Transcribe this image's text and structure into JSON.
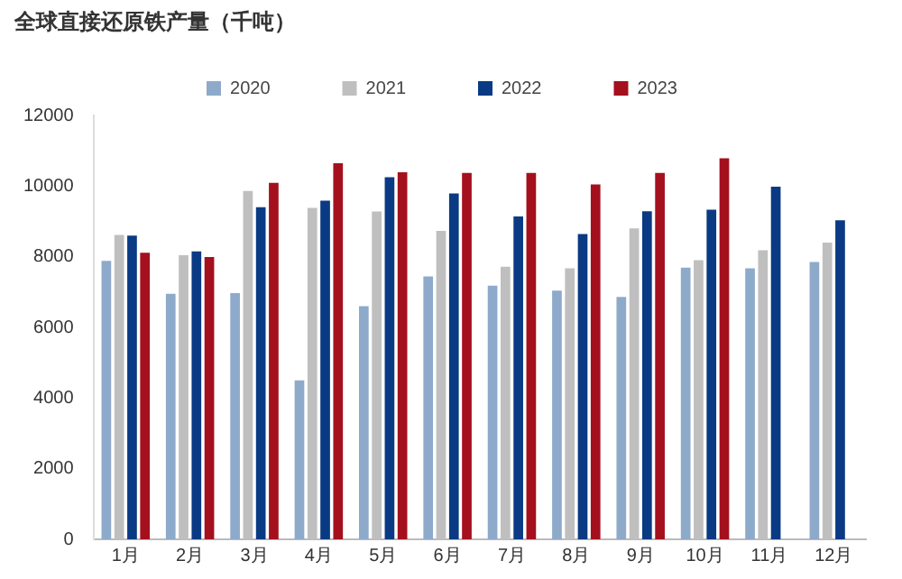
{
  "chart_data": {
    "type": "bar",
    "title": "全球直接还原铁产量（千吨）",
    "categories": [
      "1月",
      "2月",
      "3月",
      "4月",
      "5月",
      "6月",
      "7月",
      "8月",
      "9月",
      "10月",
      "11月",
      "12月"
    ],
    "series": [
      {
        "name": "2020",
        "color": "#8eaacb",
        "values": [
          7880,
          6950,
          6970,
          4500,
          6600,
          7440,
          7180,
          7040,
          6860,
          7690,
          7670,
          7850
        ]
      },
      {
        "name": "2021",
        "color": "#c0bfc0",
        "values": [
          8620,
          8040,
          9860,
          9380,
          9280,
          8730,
          7720,
          7670,
          8800,
          7900,
          8180,
          8400
        ]
      },
      {
        "name": "2022",
        "color": "#0a3a84",
        "values": [
          8600,
          8150,
          9400,
          9590,
          10250,
          9790,
          9140,
          8640,
          9290,
          9330,
          9980,
          9030
        ]
      },
      {
        "name": "2023",
        "color": "#a4101e",
        "values": [
          8110,
          7990,
          10090,
          10650,
          10390,
          10370,
          10370,
          10050,
          10370,
          10790,
          null,
          null
        ]
      }
    ],
    "ylim": [
      0,
      12000
    ],
    "yticks": [
      0,
      2000,
      4000,
      6000,
      8000,
      10000,
      12000
    ],
    "grid": false,
    "legend": "top"
  }
}
